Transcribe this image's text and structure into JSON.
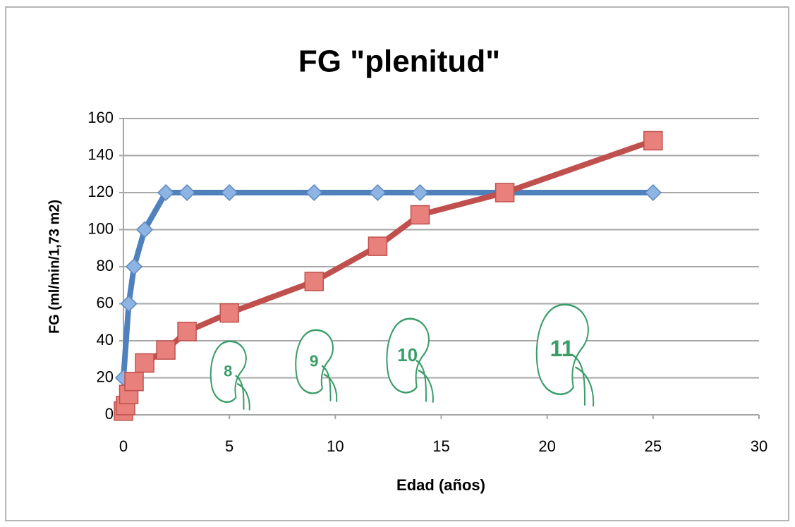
{
  "chart_data": {
    "type": "line",
    "title": "FG \"plenitud\"",
    "x_label": "Edad (años)",
    "y_label": "FG (ml/min/1,73 m2)",
    "xlim": [
      0,
      30
    ],
    "xticks": [
      0,
      5,
      10,
      15,
      20,
      25,
      30
    ],
    "ylim": [
      0,
      160
    ],
    "yticks": [
      0,
      20,
      40,
      60,
      80,
      100,
      120,
      140,
      160
    ],
    "grid": true,
    "series": [
      {
        "color": "#4f81bd",
        "marker": "diamond",
        "x": [
          0,
          0.25,
          0.5,
          1,
          2,
          3,
          5,
          9,
          12,
          14,
          25
        ],
        "values": [
          20,
          60,
          80,
          100,
          120,
          120,
          120,
          120,
          120,
          120,
          120
        ]
      },
      {
        "color": "#c0504d",
        "marker": "square",
        "x": [
          0,
          0.1,
          0.25,
          0.5,
          1,
          2,
          3,
          5,
          9,
          12,
          14,
          18,
          25
        ],
        "values": [
          2,
          5,
          11,
          18,
          28,
          35,
          45,
          55,
          72,
          91,
          108,
          120,
          148
        ]
      }
    ],
    "annotations": [
      "8",
      "9",
      "10",
      "11"
    ],
    "annotation_color": "#3a9d68"
  }
}
